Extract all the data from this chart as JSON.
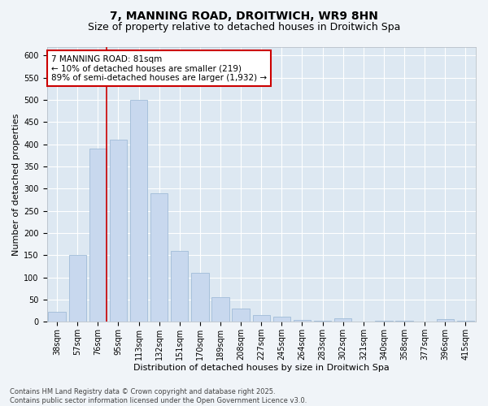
{
  "title1": "7, MANNING ROAD, DROITWICH, WR9 8HN",
  "title2": "Size of property relative to detached houses in Droitwich Spa",
  "xlabel": "Distribution of detached houses by size in Droitwich Spa",
  "ylabel": "Number of detached properties",
  "categories": [
    "38sqm",
    "57sqm",
    "76sqm",
    "95sqm",
    "113sqm",
    "132sqm",
    "151sqm",
    "170sqm",
    "189sqm",
    "208sqm",
    "227sqm",
    "245sqm",
    "264sqm",
    "283sqm",
    "302sqm",
    "321sqm",
    "340sqm",
    "358sqm",
    "377sqm",
    "396sqm",
    "415sqm"
  ],
  "values": [
    22,
    150,
    390,
    410,
    500,
    290,
    160,
    110,
    55,
    30,
    15,
    12,
    4,
    3,
    8,
    0,
    3,
    2,
    0,
    5,
    2
  ],
  "bar_color": "#c8d8ee",
  "bar_edge_color": "#a0bcd8",
  "vline_x_index": 2,
  "vline_color": "#cc0000",
  "annotation_text": "7 MANNING ROAD: 81sqm\n← 10% of detached houses are smaller (219)\n89% of semi-detached houses are larger (1,932) →",
  "annotation_box_facecolor": "#ffffff",
  "annotation_box_edgecolor": "#cc0000",
  "ylim": [
    0,
    620
  ],
  "fig_bg_color": "#f0f4f8",
  "plot_bg_color": "#dde8f2",
  "grid_color": "#ffffff",
  "title1_fontsize": 10,
  "title2_fontsize": 9,
  "axis_label_fontsize": 8,
  "tick_fontsize": 7,
  "annotation_fontsize": 7.5,
  "footer_fontsize": 6,
  "footer": "Contains HM Land Registry data © Crown copyright and database right 2025.\nContains public sector information licensed under the Open Government Licence v3.0."
}
